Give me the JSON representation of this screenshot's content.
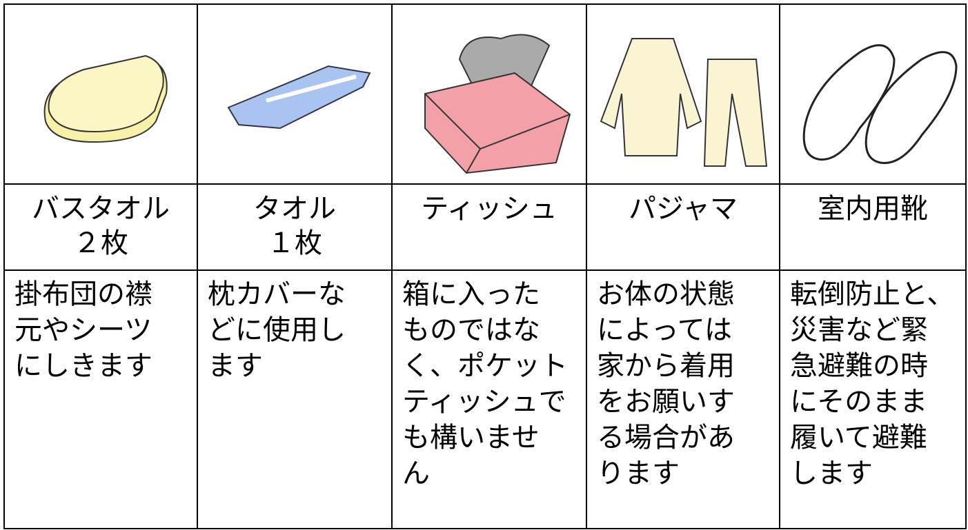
{
  "items": [
    {
      "name": [
        "バスタオル",
        "２枚"
      ],
      "description": [
        "掛布団の襟",
        "元やシーツ",
        "にしきます"
      ]
    },
    {
      "name": [
        "タオル",
        "１枚"
      ],
      "description": [
        "枕カバーな",
        "どに使用し",
        "ます"
      ]
    },
    {
      "name": [
        "ティッシュ"
      ],
      "description": [
        "箱に入った",
        "ものではな",
        "く、ポケット",
        "ティッシュで",
        "も構いませ",
        "ん"
      ]
    },
    {
      "name": [
        "パジャマ"
      ],
      "description": [
        "お体の状態",
        "によっては",
        "家から着用",
        "をお願いす",
        "る場合があ",
        "ります"
      ]
    },
    {
      "name": [
        "室内用靴"
      ],
      "description": [
        "転倒防止と、",
        "災害など緊",
        "急避難の時",
        "にそのまま",
        "履いて避難",
        "します"
      ]
    }
  ]
}
